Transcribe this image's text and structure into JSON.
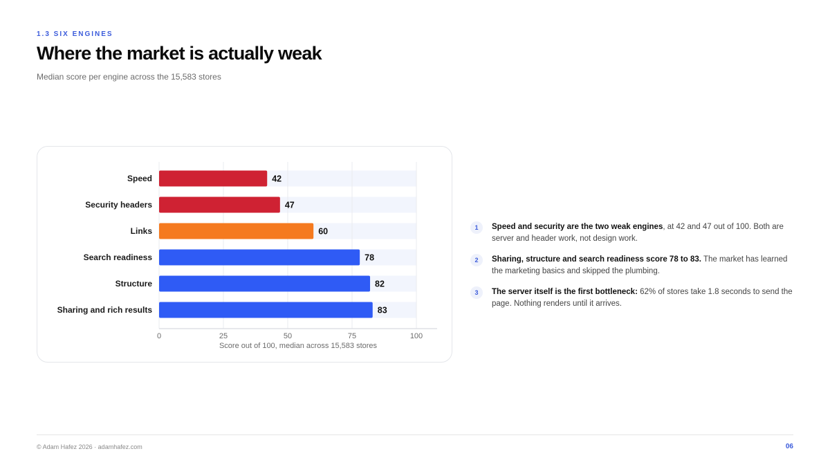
{
  "header": {
    "eyebrow": "1.3 SIX ENGINES",
    "title": "Where the market is actually weak",
    "subtitle": "Median score per engine across the 15,583 stores"
  },
  "chart_data": {
    "type": "bar",
    "orientation": "horizontal",
    "categories": [
      "Speed",
      "Security headers",
      "Links",
      "Search readiness",
      "Structure",
      "Sharing and rich results"
    ],
    "values": [
      42,
      47,
      60,
      78,
      82,
      83
    ],
    "bar_colors": [
      "#cf2233",
      "#cf2233",
      "#f57a1f",
      "#2f5bf5",
      "#2f5bf5",
      "#2f5bf5"
    ],
    "track_color": "#f2f5fd",
    "xlim": [
      0,
      100
    ],
    "xticks": [
      0,
      25,
      50,
      75,
      100
    ],
    "xlabel": "Score out of 100, median across 15,583 stores",
    "grid": true
  },
  "notes": [
    {
      "num": "1",
      "bold": "Speed and security are the two weak engines",
      "text": ", at 42 and 47 out of 100. Both are server and header work, not design work."
    },
    {
      "num": "2",
      "bold": "Sharing, structure and search readiness score 78 to 83.",
      "text": " The market has learned the marketing basics and skipped the plumbing."
    },
    {
      "num": "3",
      "bold": "The server itself is the first bottleneck:",
      "text": " 62% of stores take 1.8 seconds to send the page. Nothing renders until it arrives."
    }
  ],
  "footer": {
    "left": "© Adam Hafez 2026 · adamhafez.com",
    "page": "06"
  }
}
